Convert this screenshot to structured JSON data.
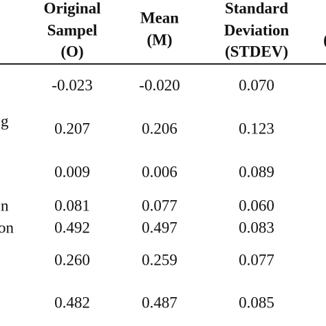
{
  "table": {
    "headers": [
      {
        "lines": [
          "Original",
          "Sampel",
          "(O)"
        ]
      },
      {
        "lines": [
          "Mean",
          "(M)"
        ]
      },
      {
        "lines": [
          "Standard",
          "Deviation",
          "(STDEV)"
        ]
      },
      {
        "lines": [
          "("
        ]
      }
    ],
    "rows": [
      {
        "values": [
          "-0.023",
          "-0.020",
          "0.070"
        ]
      },
      {
        "label": "g",
        "values": [
          "0.207",
          "0.206",
          "0.123"
        ]
      },
      {
        "values": [
          "0.009",
          "0.006",
          "0.089"
        ]
      },
      {
        "label": "n",
        "values": [
          "0.081",
          "0.077",
          "0.060"
        ]
      },
      {
        "label": "on",
        "values": [
          "0.492",
          "0.497",
          "0.083"
        ]
      },
      {
        "values": [
          "0.260",
          "0.259",
          "0.077"
        ]
      },
      {
        "values": [
          "0.482",
          "0.487",
          "0.085"
        ]
      }
    ]
  }
}
